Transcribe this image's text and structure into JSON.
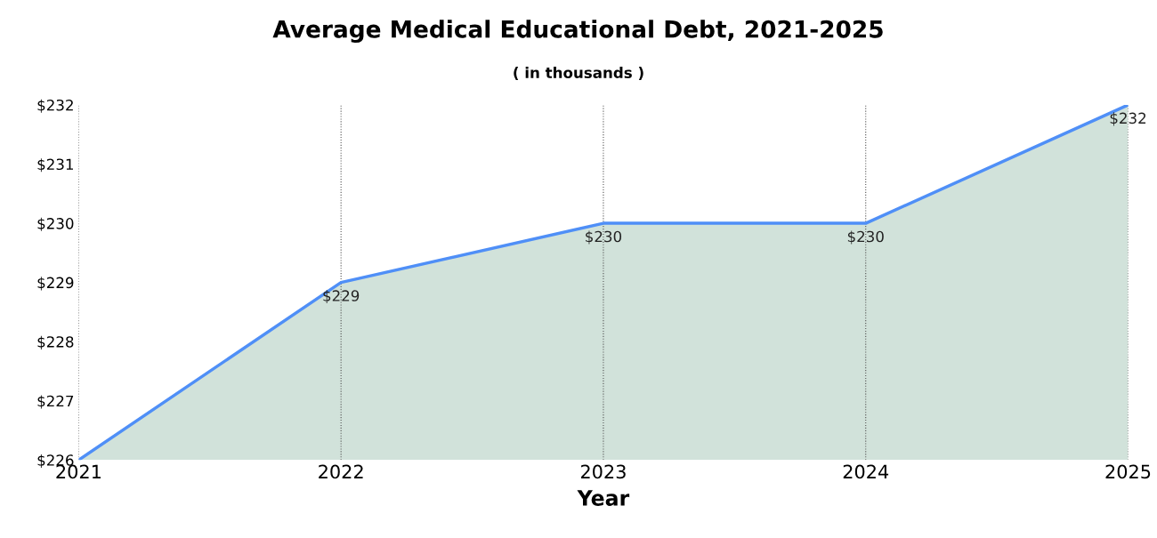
{
  "chart_data": {
    "type": "area",
    "title": "Average Medical Educational Debt, 2021-2025",
    "subtitle": "( in thousands )",
    "xlabel": "Year",
    "categories": [
      "2021",
      "2022",
      "2023",
      "2024",
      "2025"
    ],
    "series": [
      {
        "color": "#4f8ff7",
        "values": [
          226,
          229,
          230,
          230,
          232
        ],
        "value_labels": [
          null,
          "$229",
          "$230",
          "$230",
          "$232"
        ]
      }
    ],
    "ylim": [
      226,
      232
    ],
    "yticks": [
      {
        "value": 226,
        "label": "$226"
      },
      {
        "value": 227,
        "label": "$227"
      },
      {
        "value": 228,
        "label": "$228"
      },
      {
        "value": 229,
        "label": "$229"
      },
      {
        "value": 230,
        "label": "$230"
      },
      {
        "value": 231,
        "label": "$231"
      },
      {
        "value": 232,
        "label": "$232"
      }
    ],
    "grid": "x",
    "legend": false
  }
}
